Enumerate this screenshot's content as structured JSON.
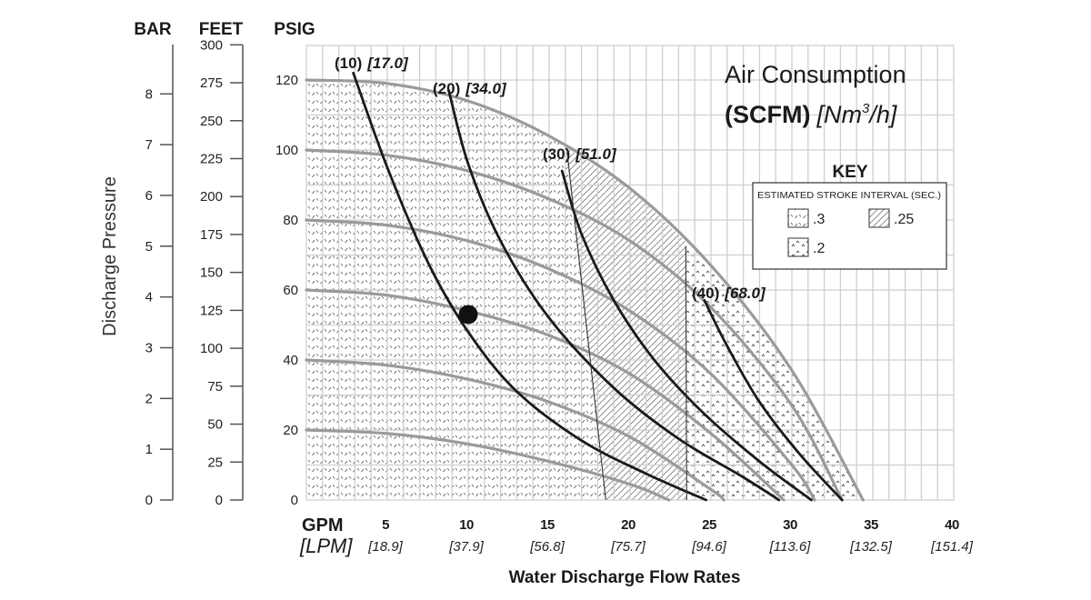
{
  "chart_data": {
    "type": "line",
    "title": "Air Consumption",
    "title_units_bold": "(SCFM)",
    "title_units_metric": "[Nm",
    "title_units_sup": "3",
    "title_units_tail": "/h]",
    "xlabel": "Water Discharge Flow Rates",
    "ylabel": "Discharge Pressure",
    "x_unit_primary": "GPM",
    "x_unit_secondary": "[LPM]",
    "xlim": [
      0,
      40
    ],
    "ylim": [
      0,
      130
    ],
    "grid": true,
    "x_ticks": [
      {
        "gpm": 5,
        "label": "5",
        "lpm": "[18.9]"
      },
      {
        "gpm": 10,
        "label": "10",
        "lpm": "[37.9]"
      },
      {
        "gpm": 15,
        "label": "15",
        "lpm": "[56.8]"
      },
      {
        "gpm": 20,
        "label": "20",
        "lpm": "[75.7]"
      },
      {
        "gpm": 25,
        "label": "25",
        "lpm": "[94.6]"
      },
      {
        "gpm": 30,
        "label": "30",
        "lpm": "[113.6]"
      },
      {
        "gpm": 35,
        "label": "35",
        "lpm": "[132.5]"
      },
      {
        "gpm": 40,
        "label": "40",
        "lpm": "[151.4]"
      }
    ],
    "y_axes": [
      {
        "name": "BAR",
        "ticks": [
          "0",
          "1",
          "2",
          "3",
          "4",
          "5",
          "6",
          "7",
          "8"
        ],
        "values": [
          0,
          1,
          2,
          3,
          4,
          5,
          6,
          7,
          8
        ],
        "psi_per_unit": 14.5038
      },
      {
        "name": "FEET",
        "ticks": [
          "0",
          "25",
          "50",
          "75",
          "100",
          "125",
          "150",
          "175",
          "200",
          "225",
          "250",
          "275",
          "300"
        ],
        "values": [
          0,
          25,
          50,
          75,
          100,
          125,
          150,
          175,
          200,
          225,
          250,
          275,
          300
        ],
        "psi_per_unit": 0.4335
      },
      {
        "name": "PSIG",
        "ticks": [
          "0",
          "20",
          "40",
          "60",
          "80",
          "100",
          "120"
        ],
        "values": [
          0,
          20,
          40,
          60,
          80,
          100,
          120
        ],
        "psi_per_unit": 1
      }
    ],
    "pressure_curves": [
      {
        "start_psi": 120,
        "points": [
          [
            0,
            120
          ],
          [
            5,
            119
          ],
          [
            10,
            114
          ],
          [
            15,
            104
          ],
          [
            20,
            89
          ],
          [
            25,
            67
          ],
          [
            30,
            37
          ],
          [
            34.4,
            0
          ]
        ]
      },
      {
        "start_psi": 100,
        "points": [
          [
            0,
            100
          ],
          [
            5,
            98.5
          ],
          [
            10,
            94
          ],
          [
            15,
            86
          ],
          [
            20,
            74
          ],
          [
            25,
            55
          ],
          [
            30,
            27
          ],
          [
            33.1,
            0
          ]
        ]
      },
      {
        "start_psi": 80,
        "points": [
          [
            0,
            80
          ],
          [
            5,
            78.5
          ],
          [
            10,
            74
          ],
          [
            15,
            66
          ],
          [
            20,
            54
          ],
          [
            25,
            36
          ],
          [
            30,
            10
          ],
          [
            31.4,
            0
          ]
        ]
      },
      {
        "start_psi": 60,
        "points": [
          [
            0,
            60
          ],
          [
            5,
            58.5
          ],
          [
            10,
            54
          ],
          [
            15,
            47
          ],
          [
            20,
            36
          ],
          [
            25,
            19
          ],
          [
            29.5,
            0
          ]
        ]
      },
      {
        "start_psi": 40,
        "points": [
          [
            0,
            40
          ],
          [
            5,
            38.5
          ],
          [
            10,
            34.5
          ],
          [
            15,
            28
          ],
          [
            20,
            18
          ],
          [
            25,
            3
          ],
          [
            25.8,
            0
          ]
        ]
      },
      {
        "start_psi": 20,
        "points": [
          [
            0,
            20
          ],
          [
            5,
            19
          ],
          [
            10,
            16
          ],
          [
            15,
            11
          ],
          [
            20,
            4.5
          ],
          [
            22.4,
            0
          ]
        ]
      }
    ],
    "air_curves": [
      {
        "label": "(10)",
        "metric": "[17.0]",
        "points": [
          [
            2.9,
            122
          ],
          [
            5,
            95
          ],
          [
            7.5,
            68
          ],
          [
            10,
            48
          ],
          [
            13,
            31
          ],
          [
            17,
            17
          ],
          [
            21,
            7.5
          ],
          [
            24.7,
            0
          ]
        ]
      },
      {
        "label": "(20)",
        "metric": "[34.0]",
        "points": [
          [
            8.8,
            117
          ],
          [
            10,
            96
          ],
          [
            12,
            74
          ],
          [
            15,
            52
          ],
          [
            19,
            32
          ],
          [
            23,
            17.5
          ],
          [
            27,
            6.5
          ],
          [
            29.2,
            0
          ]
        ]
      },
      {
        "label": "(30)",
        "metric": "[51.0]",
        "points": [
          [
            15.8,
            94
          ],
          [
            17,
            76
          ],
          [
            19,
            57
          ],
          [
            21.5,
            40
          ],
          [
            24.5,
            25
          ],
          [
            28,
            11
          ],
          [
            31.2,
            0
          ]
        ]
      },
      {
        "label": "(40)",
        "metric": "[68.0]",
        "points": [
          [
            24.6,
            57
          ],
          [
            26,
            44
          ],
          [
            28,
            28
          ],
          [
            30.5,
            13
          ],
          [
            33.1,
            0
          ]
        ]
      }
    ],
    "regions": [
      {
        "stroke_interval": ".3",
        "pattern": "dash",
        "gpm_range": [
          0,
          18.5
        ]
      },
      {
        "stroke_interval": ".25",
        "pattern": "hatch",
        "gpm_range": [
          16,
          23.5
        ]
      },
      {
        "stroke_interval": ".2",
        "pattern": "dots",
        "gpm_range": [
          23.5,
          34.4
        ]
      }
    ],
    "operating_point": {
      "gpm": 10,
      "psi": 53
    },
    "key": {
      "title": "KEY",
      "subtitle": "ESTIMATED STROKE INTERVAL (SEC.)",
      "items": [
        {
          "label": ".3",
          "pattern": "dash"
        },
        {
          "label": ".25",
          "pattern": "hatch"
        },
        {
          "label": ".2",
          "pattern": "dots"
        }
      ]
    },
    "colors": {
      "grid": "#cfcfcf",
      "pressure_curve": "#9a9a9a",
      "air_curve": "#1a1a1a",
      "axis": "#555555",
      "text": "#1a1a1a"
    }
  }
}
